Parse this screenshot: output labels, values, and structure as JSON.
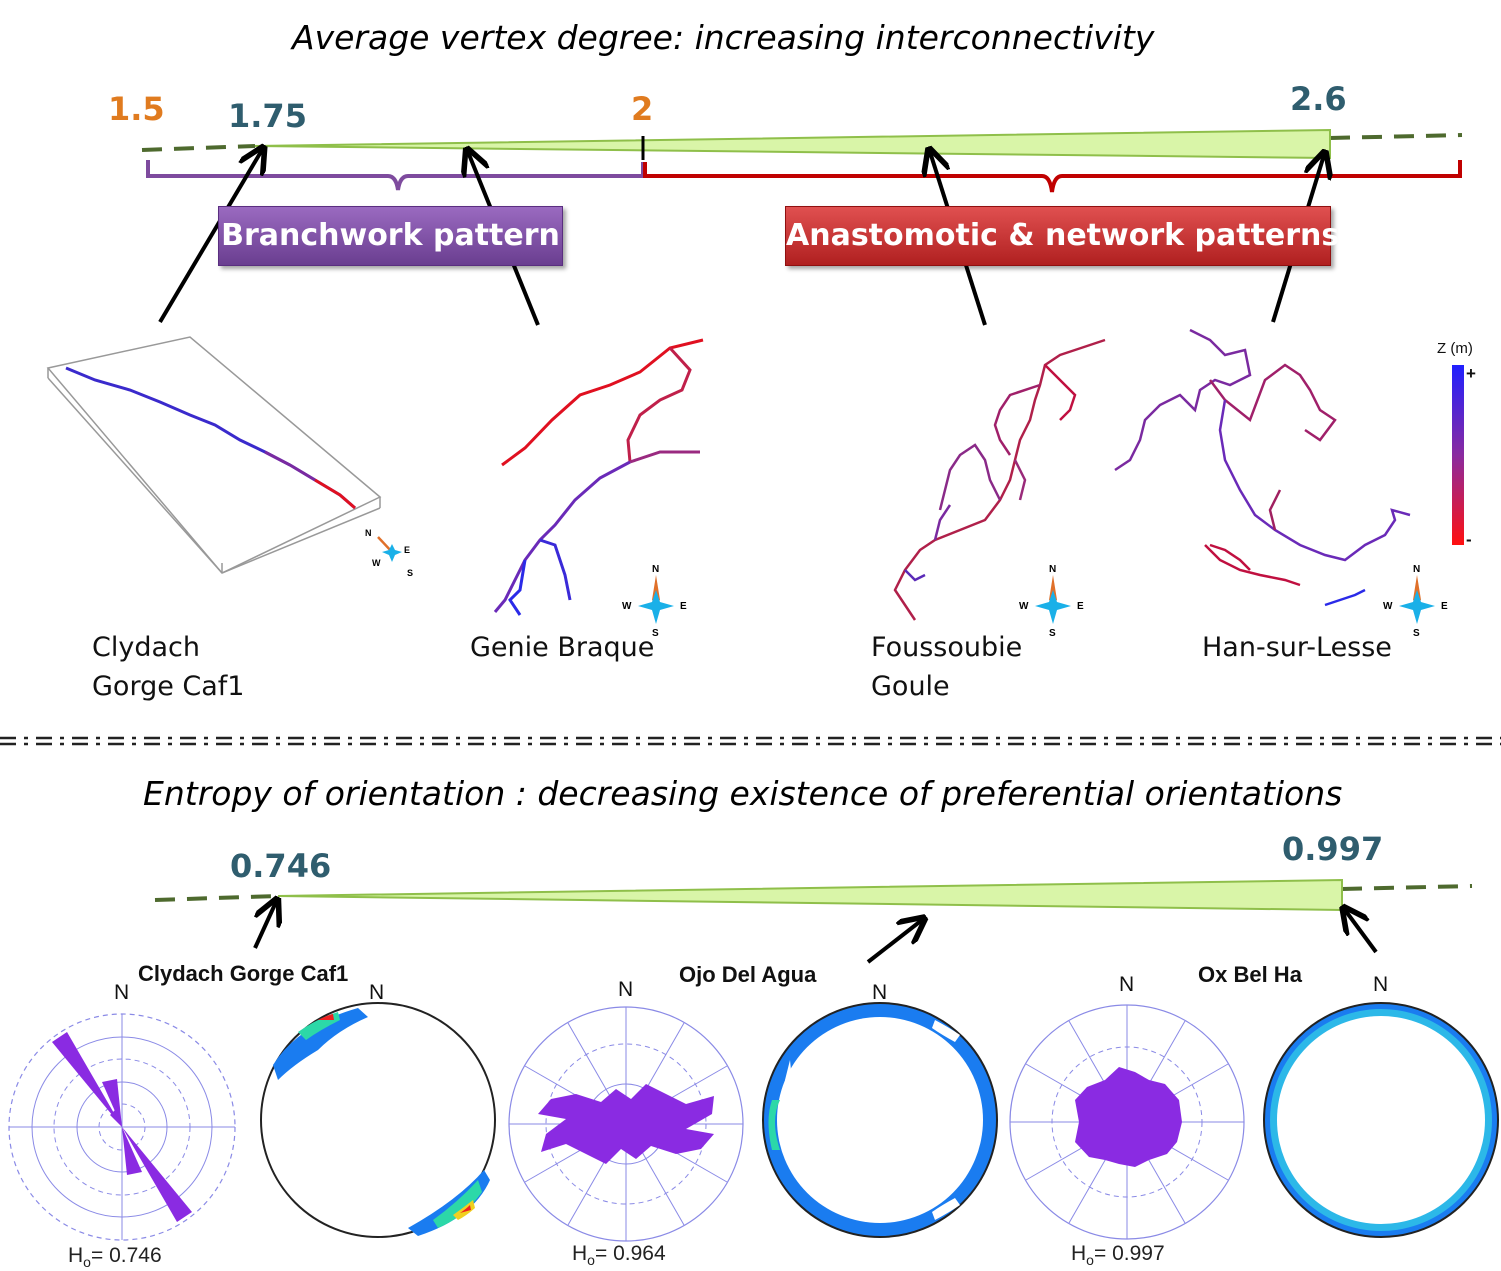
{
  "top": {
    "title": "Average vertex degree: increasing interconnectivity",
    "ticks": {
      "t1": "1.5",
      "t2": "1.75",
      "t3": "2",
      "t4": "2.6"
    },
    "branchwork_label": "Branchwork pattern",
    "anastomotic_label": "Anastomotic & network patterns",
    "caves": {
      "clydach_line1": "Clydach",
      "clydach_line2": "Gorge Caf1",
      "genie": "Genie Braque",
      "foussoubie_line1": "Foussoubie",
      "foussoubie_line2": "Goule",
      "han": "Han-sur-Lesse"
    },
    "colorbar": {
      "label": "Z (m)",
      "plus": "+",
      "minus": "-"
    },
    "compass": {
      "n": "N",
      "e": "E",
      "w": "W",
      "s": "S"
    }
  },
  "bottom": {
    "title": "Entropy of orientation : decreasing existence of preferential orientations",
    "ticks": {
      "low": "0.746",
      "high": "0.997"
    },
    "roses": [
      {
        "title": "Clydach Gorge Caf1",
        "n": "N",
        "h_prefix": "H",
        "h_sub": "o",
        "h_value": "= 0.746"
      },
      {
        "title": "Ojo Del Agua",
        "n": "N",
        "h_prefix": "H",
        "h_sub": "o",
        "h_value": "= 0.964"
      },
      {
        "title": "Ox Bel Ha",
        "n": "N",
        "h_prefix": "H",
        "h_sub": "o",
        "h_value": "= 0.997"
      }
    ],
    "stereonet_n": "N"
  },
  "colors": {
    "wedge_fill": "#d9f5a8",
    "wedge_stroke": "#8fbf4a",
    "dashed_line": "#4e6a2e",
    "branchwork": "#7e4b9e",
    "anastomotic": "#c23a3a",
    "rose_fill": "#8a2be2",
    "grid": "#8a8ae6"
  }
}
